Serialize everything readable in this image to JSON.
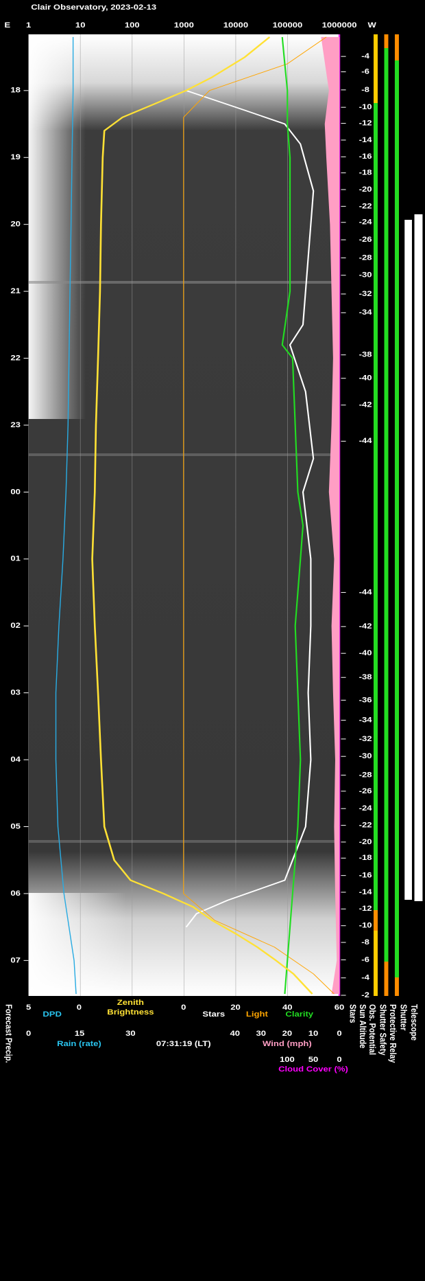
{
  "chart_data": {
    "type": "line",
    "title": "Clair Observatory, 2023-02-13",
    "time_axis": {
      "ylim": [
        17.16,
        31.53
      ],
      "yticks": [
        18,
        19,
        20,
        21,
        22,
        23,
        {
          "value": 24,
          "label": "00"
        },
        {
          "value": 25,
          "label": "01"
        },
        {
          "value": 26,
          "label": "02"
        },
        {
          "value": 27,
          "label": "03"
        },
        {
          "value": 28,
          "label": "04"
        },
        {
          "value": 29,
          "label": "05"
        },
        {
          "value": 30,
          "label": "06"
        },
        {
          "value": 31,
          "label": "07"
        }
      ]
    },
    "top_axis": {
      "left_label": "E",
      "right_label": "W",
      "log": true,
      "grid": true,
      "xlim": [
        1,
        1000000
      ],
      "xticks": [
        1,
        10,
        100,
        1000,
        10000,
        100000,
        1000000
      ]
    },
    "zenith": {
      "label": [
        "Zenith",
        "Brightness"
      ],
      "color": "#ffe135",
      "x": [
        17.2,
        17.5,
        17.8,
        18.0,
        18.2,
        18.4,
        18.6,
        18.8,
        19.0,
        20,
        21,
        22,
        23,
        24,
        25,
        26,
        27,
        28,
        29,
        29.5,
        29.8,
        30.0,
        30.2,
        30.4,
        30.6,
        30.8,
        31.0,
        31.2,
        31.5
      ],
      "values": [
        45000,
        15000,
        3500,
        1100,
        270,
        65,
        29,
        28,
        27,
        25,
        24,
        22,
        20,
        19,
        17,
        19,
        22,
        25,
        29,
        45,
        93,
        400,
        1500,
        3500,
        10000,
        26000,
        60000,
        130000,
        300000
      ]
    },
    "dpd_axis": {
      "label": "DPD",
      "color": "#29abe2",
      "xlim": [
        5,
        0
      ],
      "xticks": [
        5,
        0
      ],
      "x": [
        17.2,
        18,
        19,
        20,
        21,
        22,
        23,
        24,
        25,
        26,
        27,
        28,
        29,
        30,
        30.5,
        31,
        31.5
      ],
      "values": [
        0.6,
        0.6,
        0.7,
        0.8,
        0.9,
        1.0,
        1.1,
        1.3,
        1.6,
        2.0,
        2.3,
        2.3,
        2.1,
        1.5,
        1.0,
        0.5,
        0.3
      ]
    },
    "count_axis": {
      "xlim": [
        0,
        60
      ],
      "xticks": [
        0,
        20,
        40,
        60
      ],
      "series": [
        {
          "name": "Stars",
          "color": "#ffffff",
          "x": [
            18.0,
            18.3,
            18.5,
            18.8,
            19.5,
            20.5,
            21.5,
            21.8,
            22.5,
            23.5,
            24,
            25,
            26,
            27,
            28,
            29,
            29.8,
            30.1,
            30.3,
            30.5
          ],
          "values": [
            1,
            24,
            39,
            45,
            50,
            48,
            46,
            41,
            47,
            50,
            46,
            49,
            49,
            48,
            49,
            47,
            39,
            17,
            5,
            1
          ]
        },
        {
          "name": "Light",
          "color": "#ffa500",
          "x": [
            17.2,
            17.6,
            18.0,
            18.4,
            30.0,
            30.4,
            30.8,
            31.2,
            31.5
          ],
          "values": [
            55,
            40,
            10,
            0,
            0,
            12,
            35,
            50,
            58
          ]
        },
        {
          "name": "Clarity",
          "color": "#22dd22",
          "x": [
            17.2,
            17.6,
            18.0,
            18.5,
            19,
            20,
            21,
            21.8,
            22,
            23,
            24,
            24.5,
            25,
            26,
            27,
            28,
            29,
            29.5,
            30,
            30.5,
            31,
            31.5
          ],
          "values": [
            38,
            39,
            40,
            40,
            41,
            41,
            41,
            38,
            42,
            43,
            44,
            46,
            45,
            43,
            44,
            45,
            44,
            43,
            42,
            41,
            40,
            39
          ]
        }
      ]
    },
    "rain_axis": {
      "label": "Rain (rate)",
      "xlim": [
        0,
        30
      ],
      "xticks": [
        0,
        15,
        30
      ]
    },
    "timestamp": "07:31:19 (LT)",
    "wind_axis": {
      "label": "Wind (mph)",
      "xlim": [
        40,
        0
      ],
      "xticks": [
        40,
        30,
        20,
        10,
        0
      ]
    },
    "cloud_axis": {
      "label": "Cloud Cover (%)",
      "color": "#ff9ec4",
      "xlim": [
        100,
        0
      ],
      "xticks": [
        100,
        50,
        0
      ],
      "x": [
        17.2,
        18,
        18.5,
        19,
        20,
        21,
        22,
        23,
        24,
        25,
        26,
        27,
        28,
        29,
        30,
        31,
        31.5
      ],
      "values": [
        35,
        20,
        28,
        25,
        18,
        15,
        12,
        15,
        20,
        10,
        15,
        12,
        8,
        10,
        8,
        5,
        15
      ]
    },
    "sun_altitude": {
      "x": [
        17.49,
        17.72,
        17.99,
        18.25,
        18.49,
        18.74,
        18.99,
        19.23,
        19.48,
        19.73,
        19.97,
        20.23,
        20.5,
        20.76,
        21.04,
        21.32,
        21.95,
        22.3,
        22.7,
        23.24,
        25.5,
        26.01,
        26.41,
        26.77,
        27.11,
        27.41,
        27.69,
        27.95,
        28.23,
        28.47,
        28.73,
        28.98,
        29.23,
        29.47,
        29.73,
        29.98,
        30.23,
        30.48,
        30.73,
        30.99,
        31.26,
        31.52
      ],
      "values": [
        -4,
        -6,
        -8,
        -10,
        -12,
        -14,
        -16,
        -18,
        -20,
        -22,
        -24,
        -26,
        -28,
        -30,
        -32,
        -34,
        -38,
        -40,
        -42,
        -44,
        -44,
        -42,
        -40,
        -38,
        -36,
        -34,
        -32,
        -30,
        -28,
        -26,
        -24,
        -22,
        -20,
        -18,
        -16,
        -14,
        -12,
        -10,
        -8,
        -6,
        -4,
        -2
      ]
    },
    "row_labels": [
      "Forecast Precip.",
      "Stars",
      "Sun Altitude",
      "Obs. Potential",
      "Shutter Safety",
      "Protective Relay",
      "Shutter",
      "Telescope"
    ]
  }
}
